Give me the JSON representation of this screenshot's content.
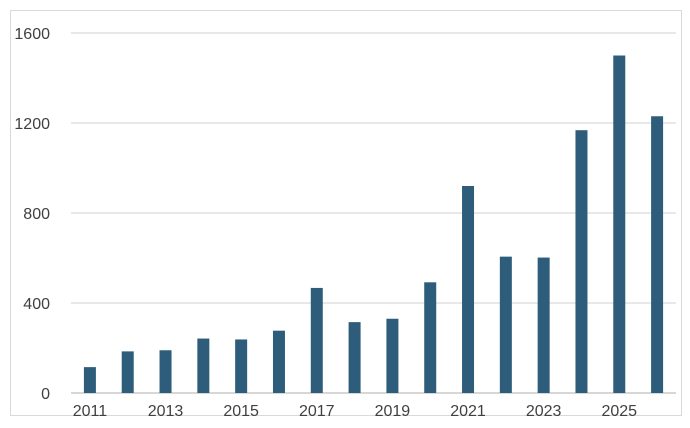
{
  "chart_data": {
    "type": "bar",
    "title": "",
    "xlabel": "",
    "ylabel": "",
    "categories": [
      "2011",
      "2012",
      "2013",
      "2014",
      "2015",
      "2016",
      "2017",
      "2018",
      "2019",
      "2020",
      "2021",
      "2022",
      "2023",
      "2024",
      "2025",
      "2026"
    ],
    "x_tick_labels": [
      "2011",
      "2013",
      "2015",
      "2017",
      "2019",
      "2021",
      "2023",
      "2025"
    ],
    "values": [
      115,
      185,
      190,
      242,
      238,
      277,
      467,
      315,
      330,
      492,
      920,
      606,
      602,
      1168,
      1500,
      1230
    ],
    "ylim": [
      0,
      1600
    ],
    "y_ticks": [
      "0",
      "400",
      "800",
      "1200",
      "1600"
    ],
    "grid": true,
    "legend": "none",
    "colors": {
      "bar": "#2e5d7b",
      "grid": "#d9d9d9",
      "axis": "#bfbfbf",
      "text": "#404040"
    }
  }
}
